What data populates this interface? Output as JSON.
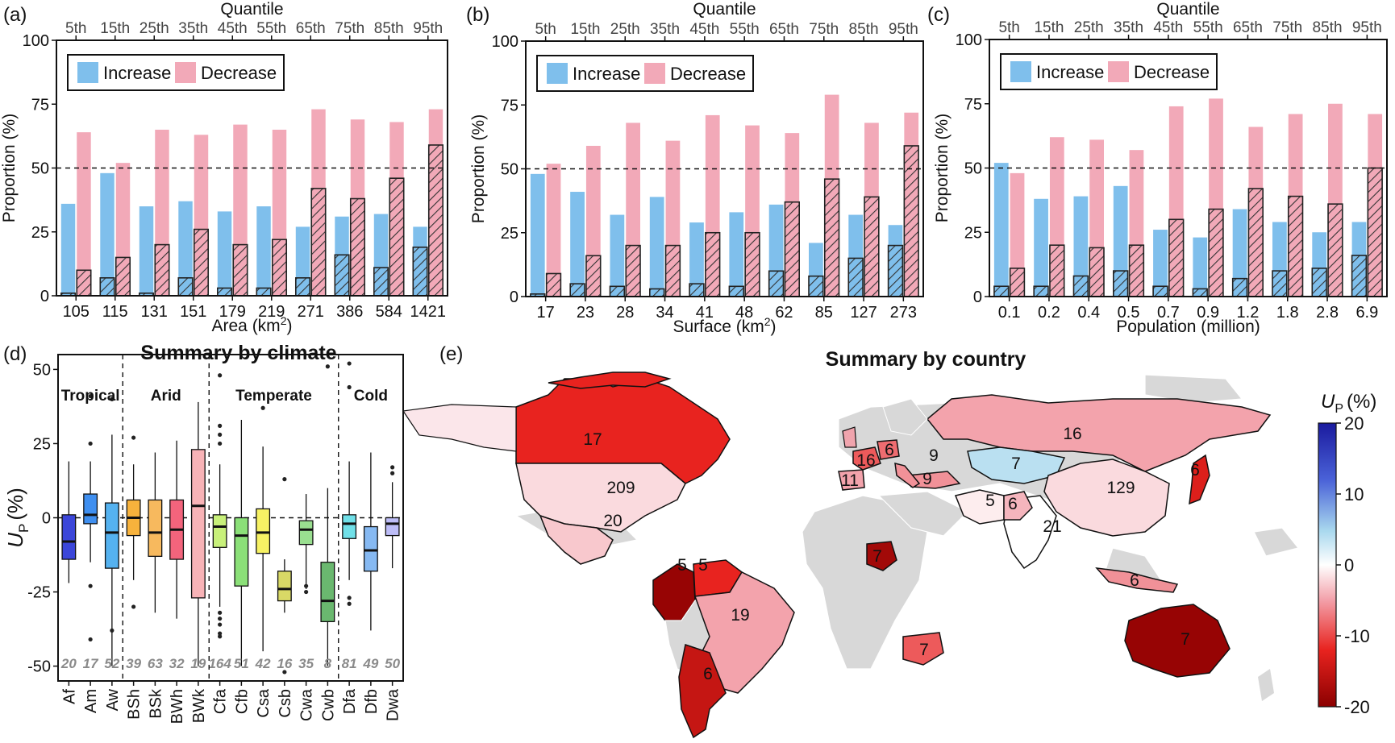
{
  "figure_labels": [
    "(a)",
    "(b)",
    "(c)",
    "(d)",
    "(e)"
  ],
  "colors": {
    "increase": "#7fbfec",
    "decrease": "#f2a9b8",
    "land": "#d8d8d8"
  },
  "chart_data": [
    {
      "id": "a",
      "type": "bar",
      "top_axis_title": "Quantile",
      "quantiles": [
        "5th",
        "15th",
        "25th",
        "35th",
        "45th",
        "55th",
        "65th",
        "75th",
        "85th",
        "95th"
      ],
      "categories": [
        "105",
        "115",
        "131",
        "151",
        "179",
        "219",
        "271",
        "386",
        "584",
        "1421"
      ],
      "xlabel": "Area (km",
      "xlabel_sup": "2",
      "xlabel_end": ")",
      "ylabel": "Proportion (%)",
      "ylim": [
        0,
        100
      ],
      "yticks": [
        "0",
        "25",
        "50",
        "75",
        "100"
      ],
      "reference_line": 50,
      "legend": [
        "Increase",
        "Decrease"
      ],
      "series": [
        {
          "name": "Increase",
          "values": [
            36,
            48,
            35,
            37,
            33,
            35,
            27,
            31,
            32,
            27
          ],
          "significant": [
            1,
            7,
            1,
            7,
            3,
            3,
            7,
            16,
            11,
            19
          ]
        },
        {
          "name": "Decrease",
          "values": [
            64,
            52,
            65,
            63,
            67,
            65,
            73,
            69,
            68,
            73
          ],
          "significant": [
            10,
            15,
            20,
            26,
            20,
            22,
            42,
            38,
            46,
            59
          ]
        }
      ]
    },
    {
      "id": "b",
      "type": "bar",
      "top_axis_title": "Quantile",
      "quantiles": [
        "5th",
        "15th",
        "25th",
        "35th",
        "45th",
        "55th",
        "65th",
        "75th",
        "85th",
        "95th"
      ],
      "categories": [
        "17",
        "23",
        "28",
        "34",
        "41",
        "48",
        "62",
        "85",
        "127",
        "273"
      ],
      "xlabel": "Surface (km",
      "xlabel_sup": "2",
      "xlabel_end": ")",
      "ylabel": "Proportion (%)",
      "ylim": [
        0,
        100
      ],
      "yticks": [
        "0",
        "25",
        "50",
        "75",
        "100"
      ],
      "reference_line": 50,
      "legend": [
        "Increase",
        "Decrease"
      ],
      "series": [
        {
          "name": "Increase",
          "values": [
            48,
            41,
            32,
            39,
            29,
            33,
            36,
            21,
            32,
            28
          ],
          "significant": [
            1,
            5,
            4,
            3,
            5,
            4,
            10,
            8,
            15,
            20
          ]
        },
        {
          "name": "Decrease",
          "values": [
            52,
            59,
            68,
            61,
            71,
            67,
            64,
            79,
            68,
            72
          ],
          "significant": [
            9,
            16,
            20,
            20,
            25,
            25,
            37,
            46,
            39,
            59
          ]
        }
      ]
    },
    {
      "id": "c",
      "type": "bar",
      "top_axis_title": "Quantile",
      "quantiles": [
        "5th",
        "15th",
        "25th",
        "35th",
        "45th",
        "55th",
        "65th",
        "75th",
        "85th",
        "95th"
      ],
      "categories": [
        "0.1",
        "0.2",
        "0.4",
        "0.5",
        "0.7",
        "0.9",
        "1.2",
        "1.8",
        "2.8",
        "6.9"
      ],
      "xlabel": "Population (million)",
      "xlabel_sup": "",
      "xlabel_end": "",
      "ylabel": "Proportion (%)",
      "ylim": [
        0,
        100
      ],
      "yticks": [
        "0",
        "25",
        "50",
        "75",
        "100"
      ],
      "reference_line": 50,
      "legend": [
        "Increase",
        "Decrease"
      ],
      "series": [
        {
          "name": "Increase",
          "values": [
            52,
            38,
            39,
            43,
            26,
            23,
            34,
            29,
            25,
            29
          ],
          "significant": [
            4,
            4,
            8,
            10,
            4,
            3,
            7,
            10,
            11,
            16
          ]
        },
        {
          "name": "Decrease",
          "values": [
            48,
            62,
            61,
            57,
            74,
            77,
            66,
            71,
            75,
            71
          ],
          "significant": [
            11,
            20,
            19,
            20,
            30,
            34,
            42,
            39,
            36,
            50
          ]
        }
      ]
    },
    {
      "id": "d",
      "type": "box",
      "title": "Summary by climate",
      "ylabel": "U",
      "ylabel_sub": "P",
      "ylabel_unit": "(%)",
      "ylim": [
        -55,
        55
      ],
      "yticks": [
        "-50",
        "-25",
        "0",
        "25",
        "50"
      ],
      "groups": [
        {
          "label": "Tropical",
          "from": 0,
          "to": 2
        },
        {
          "label": "Arid",
          "from": 3,
          "to": 6
        },
        {
          "label": "Temperate",
          "from": 7,
          "to": 12
        },
        {
          "label": "Cold",
          "from": 13,
          "to": 15
        }
      ],
      "boxes": [
        {
          "name": "Af",
          "count": "20",
          "color": "#3b46d9",
          "whislo": -22,
          "q1": -14,
          "med": -8,
          "q3": 1,
          "whishi": 19,
          "outliers": []
        },
        {
          "name": "Am",
          "count": "17",
          "color": "#3f8ff0",
          "whislo": -15,
          "q1": -2,
          "med": 1,
          "q3": 8,
          "whishi": 19,
          "outliers": [
            -41,
            -23,
            25,
            41
          ]
        },
        {
          "name": "Aw",
          "count": "52",
          "color": "#55b2f0",
          "whislo": -50,
          "q1": -17,
          "med": -5,
          "q3": 5,
          "whishi": 28,
          "outliers": [
            40,
            40,
            -38
          ]
        },
        {
          "name": "BSh",
          "count": "39",
          "color": "#f7b23c",
          "whislo": -21,
          "q1": -6,
          "med": 0,
          "q3": 6,
          "whishi": 18,
          "outliers": [
            -30,
            27
          ]
        },
        {
          "name": "BSk",
          "count": "63",
          "color": "#f7b95e",
          "whislo": -32,
          "q1": -13,
          "med": -5,
          "q3": 6,
          "whishi": 22,
          "outliers": []
        },
        {
          "name": "BWh",
          "count": "32",
          "color": "#f3647c",
          "whislo": -34,
          "q1": -14,
          "med": -4,
          "q3": 6,
          "whishi": 26,
          "outliers": []
        },
        {
          "name": "BWk",
          "count": "19",
          "color": "#f8b3b7",
          "whislo": -50,
          "q1": -27,
          "med": 4,
          "q3": 23,
          "whishi": 39,
          "outliers": []
        },
        {
          "name": "Cfa",
          "count": "164",
          "color": "#c8f07a",
          "whislo": -30,
          "q1": -10,
          "med": -3,
          "q3": 1,
          "whishi": 18,
          "outliers": [
            -39,
            -40,
            -36,
            -34,
            -32,
            25,
            28,
            31,
            48
          ]
        },
        {
          "name": "Cfb",
          "count": "51",
          "color": "#8be078",
          "whislo": -50,
          "q1": -23,
          "med": -6,
          "q3": 0,
          "whishi": 33,
          "outliers": []
        },
        {
          "name": "Csa",
          "count": "42",
          "color": "#f7f264",
          "whislo": -45,
          "q1": -12,
          "med": -5,
          "q3": 3,
          "whishi": 24,
          "outliers": [
            37
          ]
        },
        {
          "name": "Csb",
          "count": "16",
          "color": "#d9d966",
          "whislo": -32,
          "q1": -28,
          "med": -24,
          "q3": -18,
          "whishi": -14,
          "outliers": [
            -52,
            13
          ]
        },
        {
          "name": "Cwa",
          "count": "35",
          "color": "#9adf90",
          "whislo": -24,
          "q1": -9,
          "med": -4,
          "q3": -1,
          "whishi": 8,
          "outliers": [
            -23,
            -25
          ]
        },
        {
          "name": "Cwb",
          "count": "8",
          "color": "#6ab86f",
          "whislo": -50,
          "q1": -35,
          "med": -28,
          "q3": -15,
          "whishi": 10,
          "outliers": [
            51
          ]
        },
        {
          "name": "Dfa",
          "count": "81",
          "color": "#70e0e8",
          "whislo": -21,
          "q1": -7,
          "med": -2,
          "q3": 1,
          "whishi": 19,
          "outliers": [
            -29,
            -27,
            44,
            52
          ]
        },
        {
          "name": "Dfb",
          "count": "49",
          "color": "#86b9f2",
          "whislo": -38,
          "q1": -18,
          "med": -11,
          "q3": -3,
          "whishi": 22,
          "outliers": []
        },
        {
          "name": "Dwa",
          "count": "50",
          "color": "#bdbdf7",
          "whislo": -17,
          "q1": -6,
          "med": -2,
          "q3": 0,
          "whishi": 12,
          "outliers": [
            17,
            15
          ]
        }
      ]
    },
    {
      "id": "e",
      "type": "choropleth",
      "title": "Summary by country",
      "colorbar": {
        "label": "U",
        "label_sub": "P",
        "label_unit": "(%)",
        "ticks": [
          "20",
          "10",
          "0",
          "-10",
          "-20"
        ],
        "range": [
          -20,
          20
        ]
      },
      "regions": [
        {
          "name": "Canada",
          "count": "17",
          "value": -12
        },
        {
          "name": "United States",
          "count": "209",
          "value": -2
        },
        {
          "name": "Mexico",
          "count": "20",
          "value": -3
        },
        {
          "name": "Colombia",
          "count": "5",
          "value": -19
        },
        {
          "name": "Venezuela",
          "count": "5",
          "value": -12
        },
        {
          "name": "Brazil",
          "count": "19",
          "value": -5
        },
        {
          "name": "Argentina",
          "count": "6",
          "value": -15
        },
        {
          "name": "Russia",
          "count": "16",
          "value": -5
        },
        {
          "name": "Kazakhstan",
          "count": "7",
          "value": 4
        },
        {
          "name": "China",
          "count": "129",
          "value": -2
        },
        {
          "name": "India",
          "count": "21",
          "value": 0
        },
        {
          "name": "Iran",
          "count": "5",
          "value": -1
        },
        {
          "name": "Nigeria",
          "count": "7",
          "value": -18
        },
        {
          "name": "Australia",
          "count": "7",
          "value": -19
        },
        {
          "name": "Japan",
          "count": "6",
          "value": -13
        },
        {
          "name": "Spain",
          "count": "11",
          "value": -5
        },
        {
          "name": "France",
          "count": "16",
          "value": -9
        },
        {
          "name": "Germany",
          "count": "6",
          "value": -8
        },
        {
          "name": "Italy",
          "count": "9",
          "value": -6
        },
        {
          "name": "Turkey",
          "count": "9",
          "value": -6
        },
        {
          "name": "Pakistan",
          "count": "6",
          "value": -4
        },
        {
          "name": "South Africa",
          "count": "7",
          "value": -9
        },
        {
          "name": "Indonesia",
          "count": "6",
          "value": -6
        }
      ]
    }
  ]
}
